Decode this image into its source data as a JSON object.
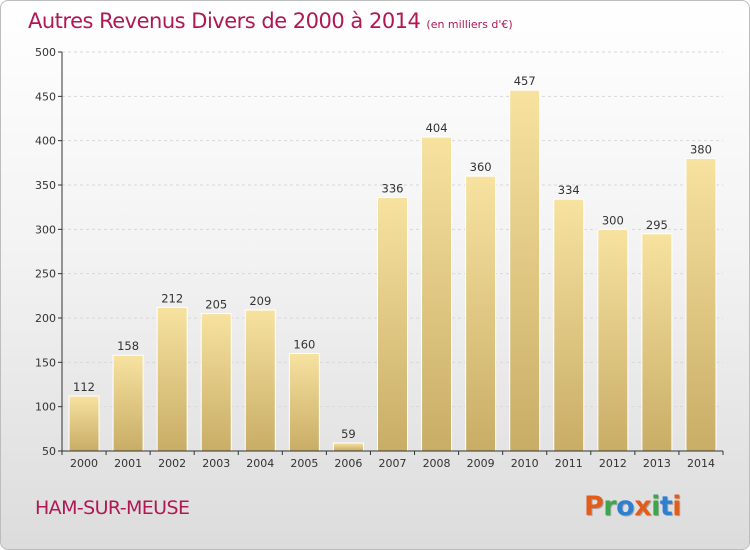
{
  "header": {
    "title": "Autres Revenus Divers de 2000 à 2014",
    "unit": "(en milliers d'€)"
  },
  "footer": {
    "town": "HAM-SUR-MEUSE",
    "logo": {
      "letters": [
        "P",
        "r",
        "o",
        "x",
        "i",
        "t",
        "i"
      ],
      "colors": [
        "#e25d1c",
        "#3aa84a",
        "#2f7fd1",
        "#e25d1c",
        "#3aa84a",
        "#2f7fd1",
        "#e25d1c"
      ]
    }
  },
  "colors": {
    "title": "#b01854",
    "bar_light": "#f7e2a0",
    "bar_dark": "#c8ad66",
    "grid": "#d8d8d8",
    "axis": "#333333"
  },
  "chart_data": {
    "type": "bar",
    "title": "Autres Revenus Divers de 2000 à 2014",
    "xlabel": "",
    "ylabel": "",
    "categories": [
      "2000",
      "2001",
      "2002",
      "2003",
      "2004",
      "2005",
      "2006",
      "2007",
      "2008",
      "2009",
      "2010",
      "2011",
      "2012",
      "2013",
      "2014"
    ],
    "values": [
      112,
      158,
      212,
      205,
      209,
      160,
      59,
      336,
      404,
      360,
      457,
      334,
      300,
      295,
      380
    ],
    "ylim": [
      50,
      500
    ],
    "yticks": [
      50,
      100,
      150,
      200,
      250,
      300,
      350,
      400,
      450,
      500
    ],
    "grid": true,
    "data_labels": true
  }
}
